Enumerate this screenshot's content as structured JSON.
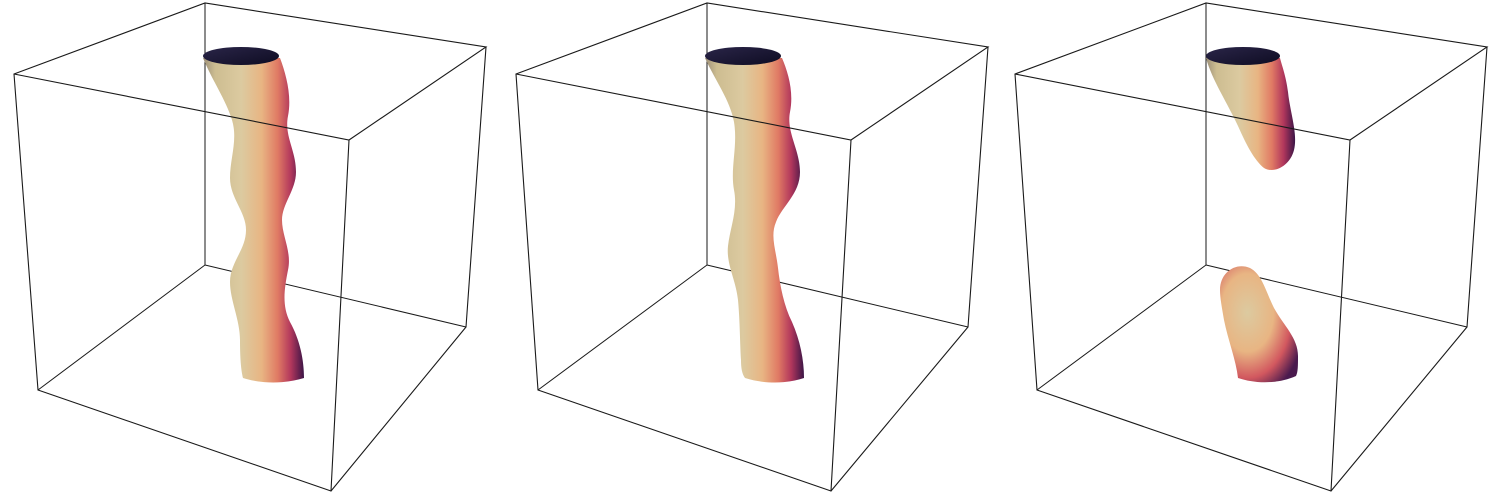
{
  "figure": {
    "panels": [
      {
        "tube_shape": "continuous-wavy",
        "pieces": 1
      },
      {
        "tube_shape": "continuous-wavy",
        "pieces": 1
      },
      {
        "tube_shape": "pinched-off",
        "pieces": 2
      }
    ],
    "colors": {
      "box_edge": "#1a1a1a",
      "tube_light": "#cdbd91",
      "tube_mid": "#e29a6e",
      "tube_warm": "#c2475a",
      "tube_dark": "#3b1446",
      "cap_dark": "#0e0c22",
      "background": "#ffffff"
    }
  }
}
